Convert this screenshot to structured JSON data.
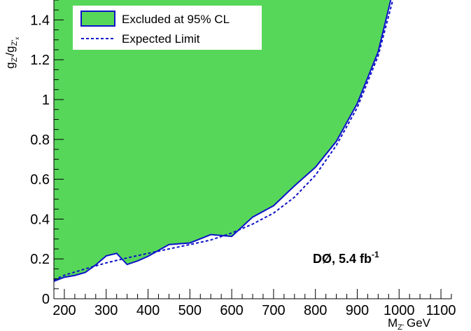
{
  "chart_data": {
    "type": "area",
    "x_label_main": "M",
    "x_label_sub": "Z'",
    "x_label_unit": "GeV",
    "y_label_text": "g",
    "y_label_num_sub": "Z'",
    "y_label_sep": "/g",
    "y_label_den_sub": "Z'",
    "y_label_den_subsub": "x",
    "xlim": [
      175,
      1125
    ],
    "ylim": [
      0.0,
      1.5
    ],
    "x_ticks": [
      200,
      300,
      400,
      500,
      600,
      700,
      800,
      900,
      1000,
      1100
    ],
    "y_ticks": [
      0,
      0.2,
      0.4,
      0.6,
      0.8,
      1,
      1.2,
      1.4
    ],
    "grid": false,
    "legend_position": "top-left",
    "series": [
      {
        "name": "Excluded at 95% CL",
        "style": "filled",
        "fill_color": "#57d75a",
        "line_color": "#0d12c7",
        "x": [
          175,
          200,
          225,
          250,
          275,
          300,
          325,
          350,
          375,
          400,
          450,
          500,
          550,
          600,
          650,
          700,
          750,
          800,
          850,
          900,
          950,
          980
        ],
        "y": [
          0.088,
          0.108,
          0.117,
          0.132,
          0.17,
          0.215,
          0.228,
          0.172,
          0.19,
          0.213,
          0.272,
          0.28,
          0.322,
          0.313,
          0.41,
          0.467,
          0.567,
          0.66,
          0.79,
          0.98,
          1.24,
          1.5
        ]
      },
      {
        "name": "Expected Limit",
        "style": "dashed",
        "line_color": "#0d12c7",
        "x": [
          175,
          200,
          250,
          300,
          350,
          400,
          450,
          500,
          550,
          600,
          650,
          700,
          750,
          800,
          850,
          900,
          950,
          985
        ],
        "y": [
          0.095,
          0.118,
          0.15,
          0.18,
          0.205,
          0.228,
          0.25,
          0.272,
          0.295,
          0.33,
          0.375,
          0.43,
          0.51,
          0.62,
          0.77,
          0.96,
          1.22,
          1.5
        ]
      }
    ],
    "annotation": {
      "text_main": "DØ, 5.4 fb",
      "text_sup": "-1"
    }
  }
}
